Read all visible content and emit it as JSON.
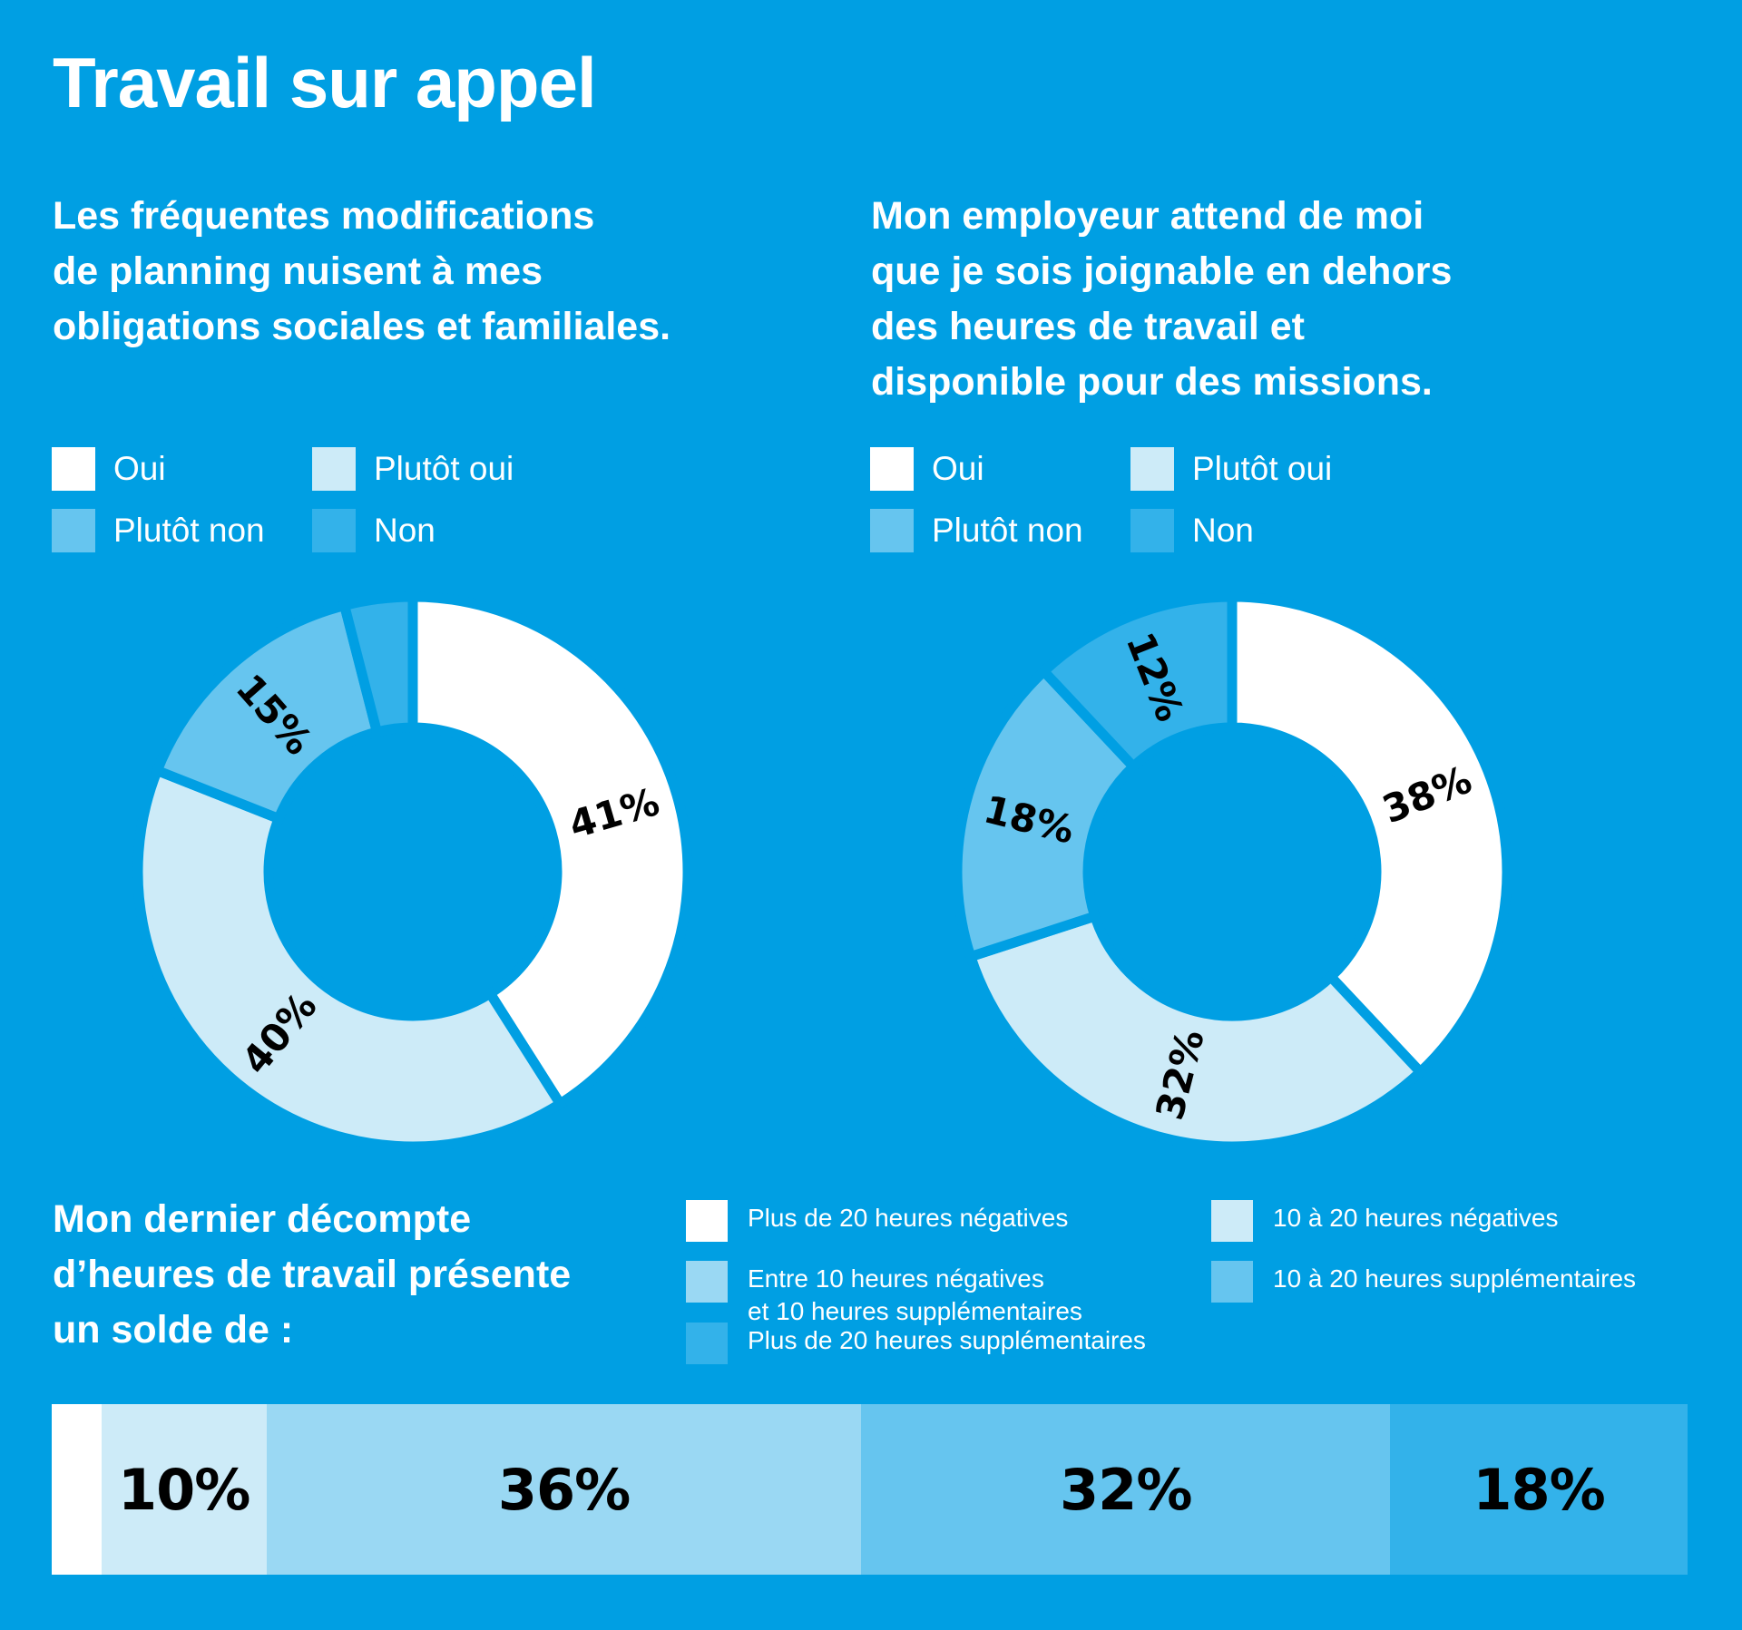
{
  "title": "Travail sur appel",
  "colors": {
    "background": "#009fe3",
    "oui": "#ffffff",
    "plutot_oui": "#cdebf8",
    "plutot_non": "#66c5ef",
    "non": "#33b2ea",
    "bar_1": "#ffffff",
    "bar_2": "#cdebf8",
    "bar_3": "#9ad8f3",
    "bar_4": "#66c5ef",
    "bar_5": "#33b2ea"
  },
  "legend": {
    "oui": "Oui",
    "plutot_oui": "Plutôt oui",
    "plutot_non": "Plutôt non",
    "non": "Non"
  },
  "bar_legend": {
    "item1": "Plus de 20 heures négatives",
    "item2": "10 à 20 heures négatives",
    "item3": "Entre 10 heures négatives\net 10 heures supplémentaires",
    "item4": "10 à 20 heures supplémentaires",
    "item5": "Plus de 20 heures supplémentaires"
  },
  "chart_data": [
    {
      "type": "pie",
      "title": "Les fréquentes modifications\nde planning nuisent à mes\nobligations sociales et familiales.",
      "categories": [
        "Oui",
        "Plutôt oui",
        "Plutôt non",
        "Non"
      ],
      "values": [
        41,
        40,
        15,
        4
      ],
      "labels": [
        "41%",
        "40%",
        "15%",
        ""
      ]
    },
    {
      "type": "pie",
      "title": "Mon employeur attend de moi\nque je sois joignable en dehors\ndes heures de travail et\ndisponible pour des missions.",
      "categories": [
        "Oui",
        "Plutôt oui",
        "Plutôt non",
        "Non"
      ],
      "values": [
        38,
        32,
        18,
        12
      ],
      "labels": [
        "38%",
        "32%",
        "18%",
        "12%"
      ]
    },
    {
      "type": "bar",
      "orientation": "horizontal-stacked",
      "title": "Mon dernier décompte\nd’heures de travail présente\nun solde de :",
      "categories": [
        "Plus de 20 heures négatives",
        "10 à 20 heures négatives",
        "Entre 10 heures négatives et 10 heures supplémentaires",
        "10 à 20 heures supplémentaires",
        "Plus de 20 heures supplémentaires"
      ],
      "values": [
        3,
        10,
        36,
        32,
        18
      ],
      "labels": [
        "",
        "10%",
        "36%",
        "32%",
        "18%"
      ]
    }
  ]
}
